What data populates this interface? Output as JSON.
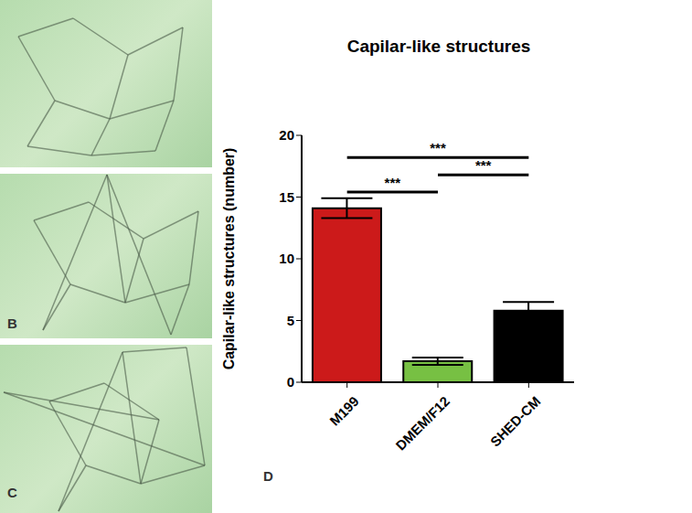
{
  "chart_data": {
    "type": "bar",
    "title": "Capilar-like structures",
    "y_label": "Capilar-like structures (number)",
    "categories": [
      "M199",
      "DMEM/F12",
      "SHED-CM"
    ],
    "values": [
      14.1,
      1.7,
      5.8
    ],
    "errors": [
      0.8,
      0.3,
      0.7
    ],
    "colors": [
      "#cc1a1a",
      "#77c043",
      "#000000"
    ],
    "ylim": [
      0,
      20
    ],
    "yticks": [
      0,
      5,
      10,
      15,
      20
    ],
    "significance": [
      {
        "from": "M199",
        "to": "DMEM/F12",
        "label": "***"
      },
      {
        "from": "DMEM/F12",
        "to": "SHED-CM",
        "label": "***"
      },
      {
        "from": "M199",
        "to": "SHED-CM",
        "label": "***"
      }
    ],
    "annotations": [
      "B",
      "C",
      "D"
    ]
  }
}
